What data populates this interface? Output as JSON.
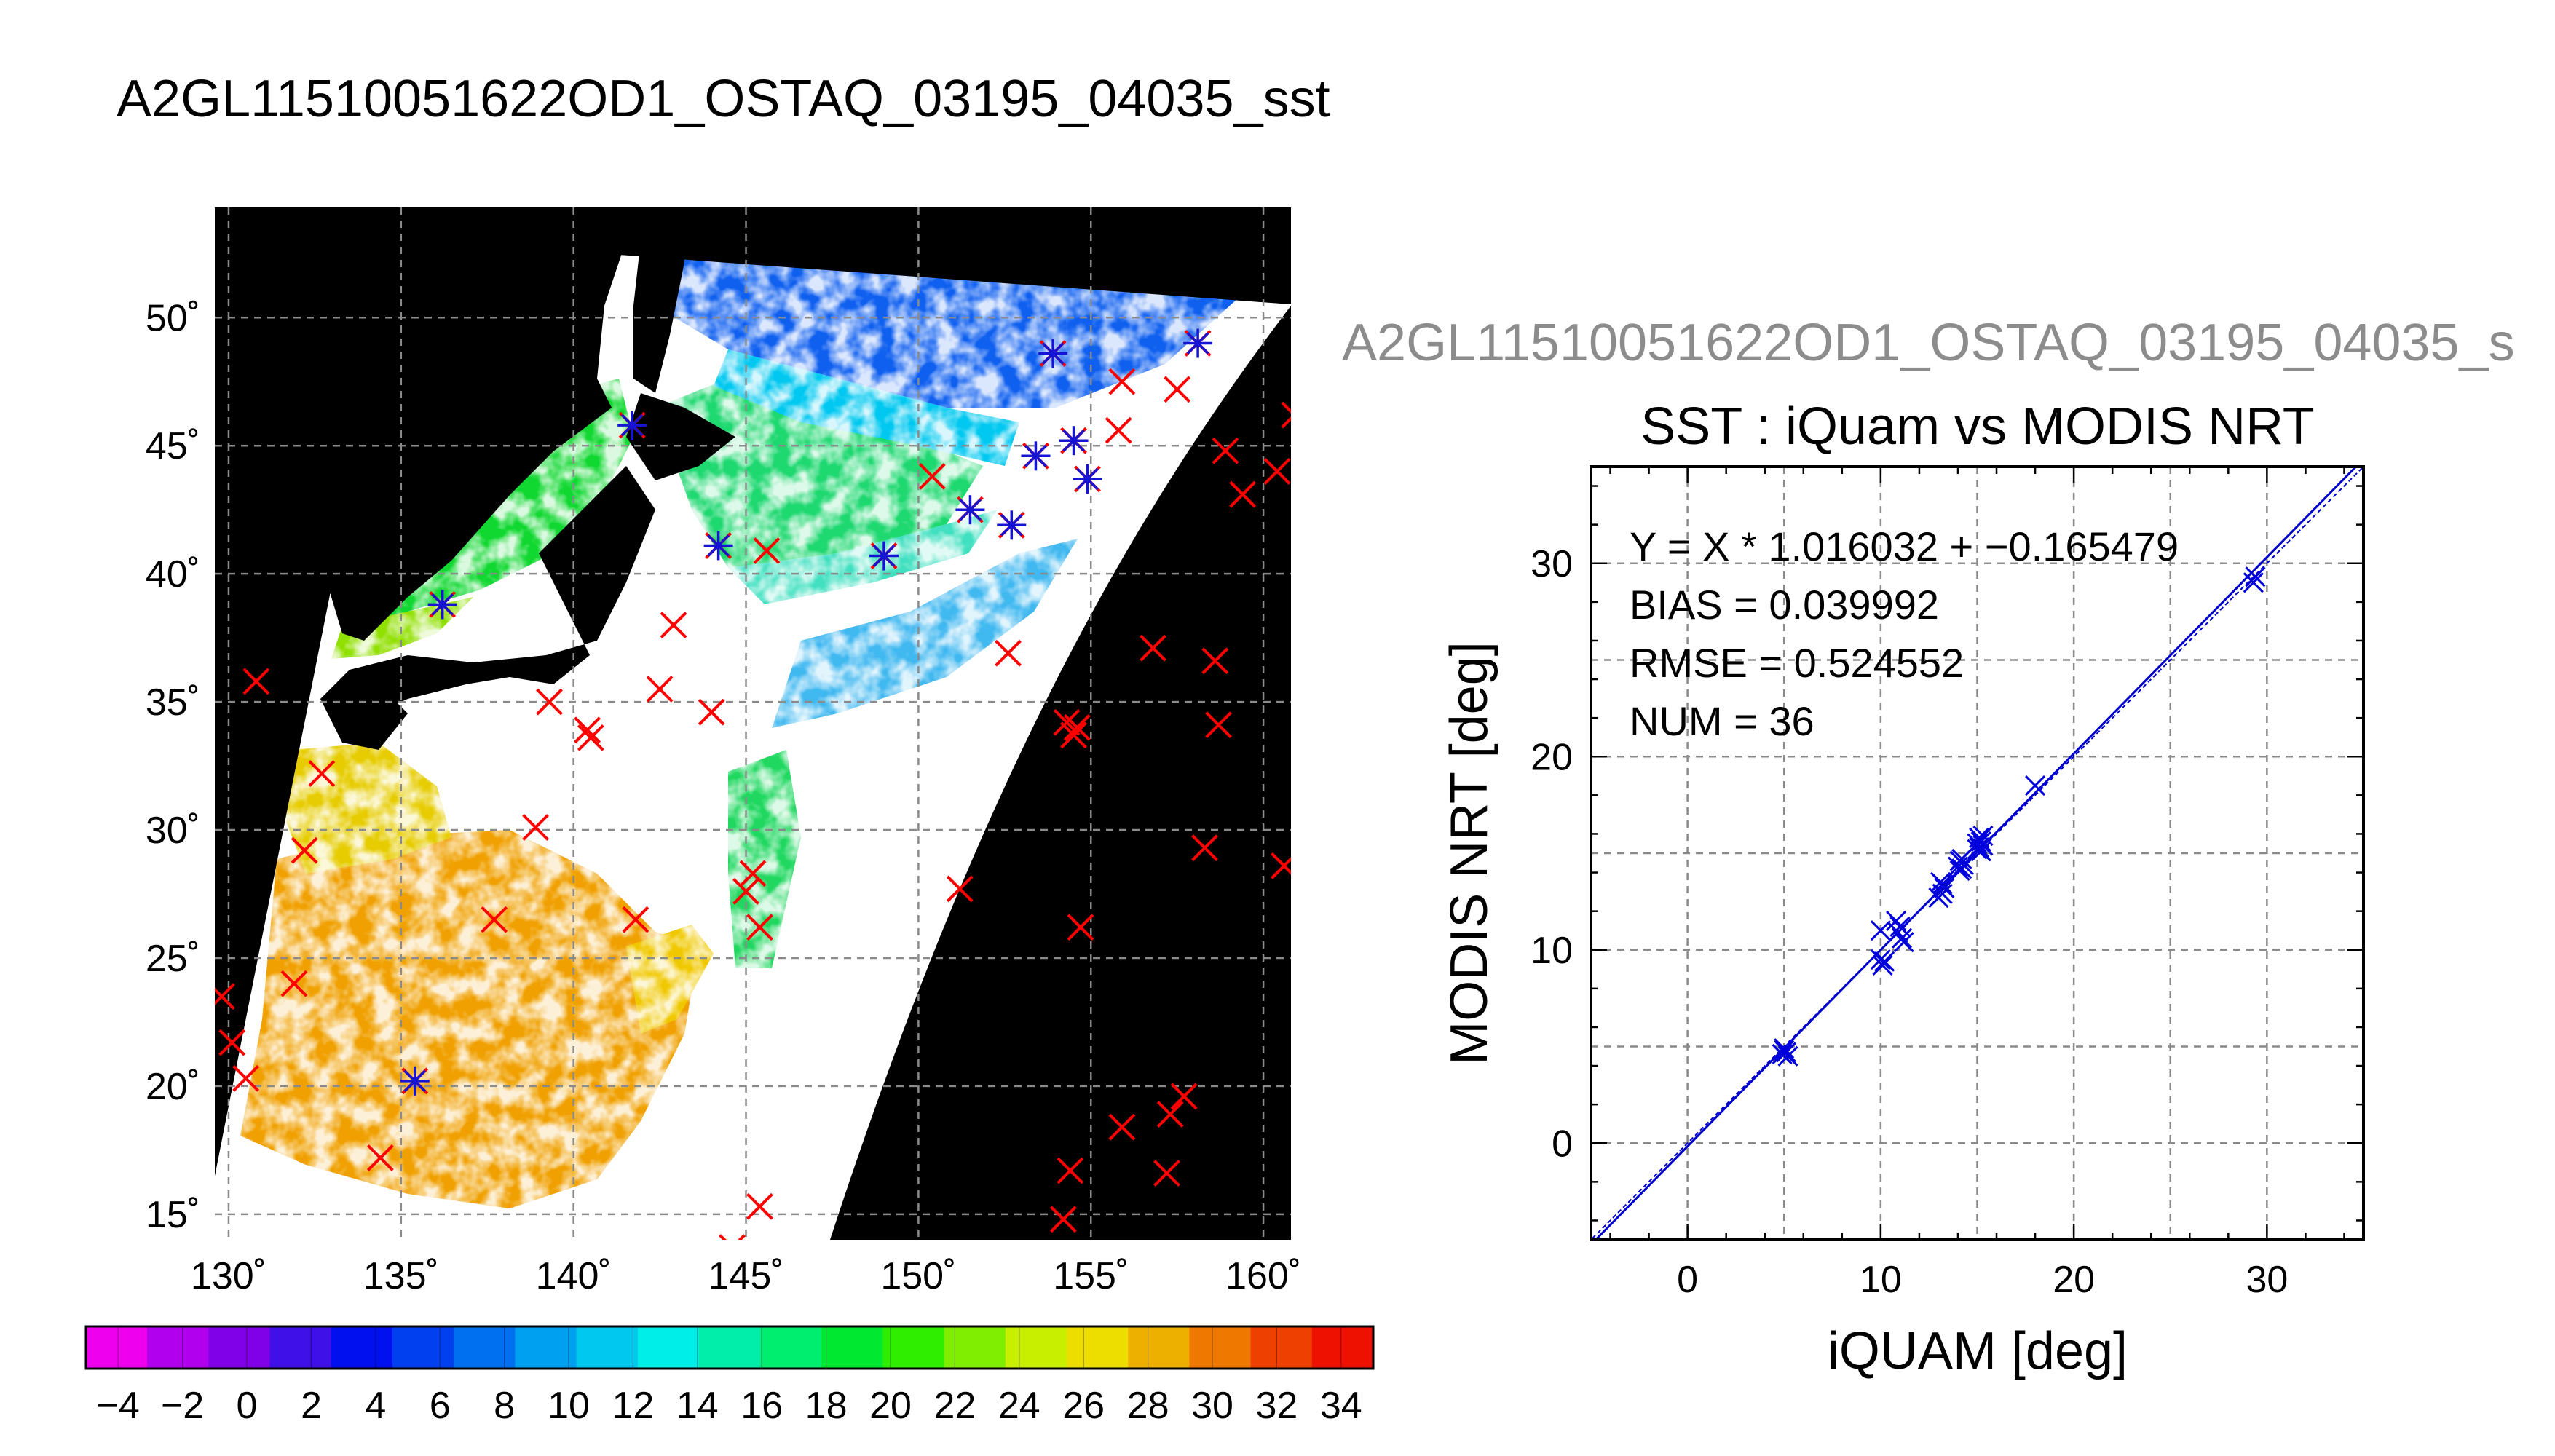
{
  "figure_title": "A2GL11510051622OD1_OSTAQ_03195_04035_sst",
  "colors": {
    "match": "#ff0000",
    "coincident": "#1414d2",
    "scatter": "#0000dd",
    "land": "#000000",
    "cloud": "#ffffff"
  },
  "chart_data": [
    {
      "type": "map",
      "title": "",
      "x_ticks": [
        "130˚",
        "135˚",
        "140˚",
        "145˚",
        "150˚",
        "155˚",
        "160˚"
      ],
      "y_ticks": [
        "50˚",
        "45˚",
        "40˚",
        "35˚",
        "30˚",
        "25˚",
        "20˚",
        "15˚"
      ],
      "xlim": [
        129.6,
        160.8
      ],
      "ylim": [
        14,
        54.3
      ],
      "grid": true,
      "iquam_points": [
        {
          "lon": 135.4,
          "lat": 20.2,
          "blue": true
        },
        {
          "lon": 136.2,
          "lat": 38.8,
          "blue": true
        },
        {
          "lon": 141.7,
          "lat": 45.8,
          "blue": true
        },
        {
          "lon": 144.2,
          "lat": 41.1,
          "blue": true
        },
        {
          "lon": 149.0,
          "lat": 40.7,
          "blue": true
        },
        {
          "lon": 151.5,
          "lat": 42.5,
          "blue": true
        },
        {
          "lon": 152.7,
          "lat": 41.9,
          "blue": true
        },
        {
          "lon": 153.4,
          "lat": 44.6,
          "blue": true
        },
        {
          "lon": 153.9,
          "lat": 48.6,
          "blue": true
        },
        {
          "lon": 154.5,
          "lat": 45.2,
          "blue": true
        },
        {
          "lon": 154.9,
          "lat": 43.7,
          "blue": true
        },
        {
          "lon": 158.1,
          "lat": 49.0,
          "blue": true
        },
        {
          "lon": 130.8,
          "lat": 35.8
        },
        {
          "lon": 132.7,
          "lat": 32.2
        },
        {
          "lon": 132.2,
          "lat": 29.2
        },
        {
          "lon": 129.8,
          "lat": 23.5
        },
        {
          "lon": 130.1,
          "lat": 21.7
        },
        {
          "lon": 130.5,
          "lat": 20.3
        },
        {
          "lon": 131.9,
          "lat": 24.0
        },
        {
          "lon": 134.4,
          "lat": 17.2
        },
        {
          "lon": 137.7,
          "lat": 26.5
        },
        {
          "lon": 138.9,
          "lat": 30.1
        },
        {
          "lon": 139.3,
          "lat": 35.0
        },
        {
          "lon": 140.4,
          "lat": 33.9
        },
        {
          "lon": 140.5,
          "lat": 33.6
        },
        {
          "lon": 141.8,
          "lat": 26.5
        },
        {
          "lon": 142.5,
          "lat": 35.5
        },
        {
          "lon": 142.9,
          "lat": 38.0
        },
        {
          "lon": 144.0,
          "lat": 34.6
        },
        {
          "lon": 145.6,
          "lat": 40.9
        },
        {
          "lon": 145.2,
          "lat": 28.3
        },
        {
          "lon": 145.0,
          "lat": 27.6
        },
        {
          "lon": 145.4,
          "lat": 26.2
        },
        {
          "lon": 145.4,
          "lat": 15.3
        },
        {
          "lon": 144.6,
          "lat": 13.7
        },
        {
          "lon": 150.4,
          "lat": 43.8
        },
        {
          "lon": 151.2,
          "lat": 27.7
        },
        {
          "lon": 152.6,
          "lat": 36.9
        },
        {
          "lon": 154.3,
          "lat": 34.2
        },
        {
          "lon": 154.6,
          "lat": 34.0
        },
        {
          "lon": 154.5,
          "lat": 33.7
        },
        {
          "lon": 154.7,
          "lat": 26.2
        },
        {
          "lon": 154.4,
          "lat": 16.7
        },
        {
          "lon": 154.2,
          "lat": 14.8
        },
        {
          "lon": 155.9,
          "lat": 47.5
        },
        {
          "lon": 155.8,
          "lat": 45.6
        },
        {
          "lon": 155.9,
          "lat": 18.4
        },
        {
          "lon": 156.8,
          "lat": 37.1
        },
        {
          "lon": 157.2,
          "lat": 16.6
        },
        {
          "lon": 157.3,
          "lat": 18.9
        },
        {
          "lon": 157.7,
          "lat": 19.6
        },
        {
          "lon": 157.5,
          "lat": 47.2
        },
        {
          "lon": 158.3,
          "lat": 29.3
        },
        {
          "lon": 158.6,
          "lat": 36.6
        },
        {
          "lon": 158.7,
          "lat": 34.1
        },
        {
          "lon": 158.9,
          "lat": 44.8
        },
        {
          "lon": 159.4,
          "lat": 43.1
        },
        {
          "lon": 160.4,
          "lat": 44.0
        },
        {
          "lon": 160.9,
          "lat": 46.2
        },
        {
          "lon": 160.6,
          "lat": 28.6
        }
      ]
    },
    {
      "type": "colorbar",
      "range": [
        -5,
        35
      ],
      "tick_labels": [
        "−4",
        "−2",
        "0",
        "2",
        "4",
        "6",
        "8",
        "10",
        "12",
        "14",
        "16",
        "18",
        "20",
        "22",
        "24",
        "26",
        "28",
        "30",
        "32",
        "34"
      ],
      "tick_values": [
        -4,
        -2,
        0,
        2,
        4,
        6,
        8,
        10,
        12,
        14,
        16,
        18,
        20,
        22,
        24,
        26,
        28,
        30,
        32,
        34
      ],
      "colors": [
        "#ee00ee",
        "#b000ee",
        "#8000e8",
        "#4010e8",
        "#0010ee",
        "#0040ee",
        "#0070f0",
        "#00a0f0",
        "#00c8ee",
        "#00eee8",
        "#00eeaa",
        "#00ee70",
        "#00e830",
        "#30ee00",
        "#80ee00",
        "#c8ee00",
        "#eede00",
        "#eeb000",
        "#ee7800",
        "#ee4000",
        "#ee1000"
      ]
    },
    {
      "type": "scatter",
      "title": "SST : iQuam vs MODIS NRT",
      "subtitle": "A2GL11510051622OD1_OSTAQ_03195_04035_s",
      "xlabel": "iQUAM [deg]",
      "ylabel": "MODIS NRT [deg]",
      "xlim": [
        -5,
        35
      ],
      "ylim": [
        -5,
        35
      ],
      "x_ticks": [
        "0",
        "10",
        "20",
        "30"
      ],
      "x_tick_values": [
        0,
        10,
        20,
        30
      ],
      "y_ticks": [
        "0",
        "10",
        "20",
        "30"
      ],
      "y_tick_values": [
        0,
        10,
        20,
        30
      ],
      "grid": true,
      "stats": [
        "Y = X * 1.016032 + −0.165479",
        "BIAS = 0.039992",
        "RMSE = 0.524552",
        "NUM = 36"
      ],
      "fit": {
        "slope": 1.016032,
        "intercept": -0.165479
      },
      "points": [
        {
          "x": 4.9,
          "y": 4.6
        },
        {
          "x": 5.0,
          "y": 4.8
        },
        {
          "x": 5.1,
          "y": 4.7
        },
        {
          "x": 5.2,
          "y": 4.5
        },
        {
          "x": 5.0,
          "y": 4.9
        },
        {
          "x": 10.0,
          "y": 9.5
        },
        {
          "x": 10.1,
          "y": 9.2
        },
        {
          "x": 10.0,
          "y": 11.0
        },
        {
          "x": 10.8,
          "y": 11.5
        },
        {
          "x": 10.9,
          "y": 10.9
        },
        {
          "x": 11.1,
          "y": 10.6
        },
        {
          "x": 11.2,
          "y": 10.4
        },
        {
          "x": 13.0,
          "y": 12.7
        },
        {
          "x": 13.1,
          "y": 13.5
        },
        {
          "x": 13.3,
          "y": 13.2
        },
        {
          "x": 13.2,
          "y": 12.9
        },
        {
          "x": 14.0,
          "y": 14.3
        },
        {
          "x": 14.1,
          "y": 14.6
        },
        {
          "x": 14.3,
          "y": 14.4
        },
        {
          "x": 14.2,
          "y": 14.2
        },
        {
          "x": 15.0,
          "y": 15.5
        },
        {
          "x": 15.1,
          "y": 15.3
        },
        {
          "x": 15.2,
          "y": 15.6
        },
        {
          "x": 15.1,
          "y": 15.8
        },
        {
          "x": 15.3,
          "y": 15.4
        },
        {
          "x": 15.0,
          "y": 15.2
        },
        {
          "x": 15.2,
          "y": 15.1
        },
        {
          "x": 14.1,
          "y": 14.1
        },
        {
          "x": 13.2,
          "y": 13.4
        },
        {
          "x": 10.2,
          "y": 9.4
        },
        {
          "x": 18.0,
          "y": 18.5
        },
        {
          "x": 29.3,
          "y": 29.0
        },
        {
          "x": 29.4,
          "y": 29.3
        },
        {
          "x": 15.3,
          "y": 15.9
        },
        {
          "x": 14.2,
          "y": 14.7
        },
        {
          "x": 11.0,
          "y": 11.2
        }
      ]
    }
  ]
}
